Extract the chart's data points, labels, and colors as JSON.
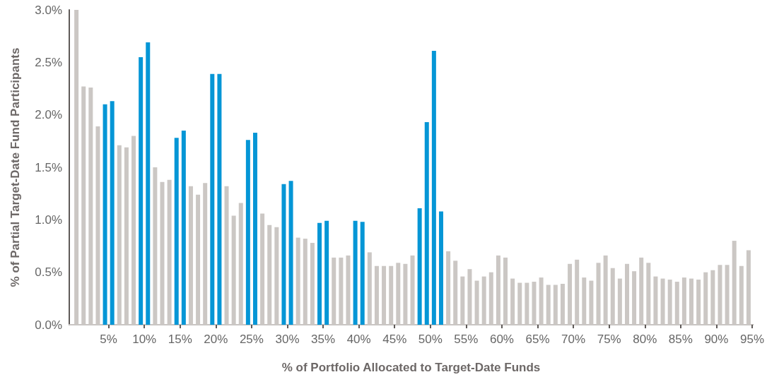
{
  "chart_data": {
    "type": "bar",
    "xlabel": "% of Portfolio Allocated to Target-Date Funds",
    "ylabel": "% of Partial Target-Date Fund Participants",
    "x": [
      1,
      2,
      3,
      4,
      5,
      6,
      7,
      8,
      9,
      10,
      11,
      12,
      13,
      14,
      15,
      16,
      17,
      18,
      19,
      20,
      21,
      22,
      23,
      24,
      25,
      26,
      27,
      28,
      29,
      30,
      31,
      32,
      33,
      34,
      35,
      36,
      37,
      38,
      39,
      40,
      41,
      42,
      43,
      44,
      45,
      46,
      47,
      48,
      49,
      50,
      51,
      52,
      53,
      54,
      55,
      56,
      57,
      58,
      59,
      60,
      61,
      62,
      63,
      64,
      65,
      66,
      67,
      68,
      69,
      70,
      71,
      72,
      73,
      74,
      75,
      76,
      77,
      78,
      79,
      80,
      81,
      82,
      83,
      84,
      85,
      86,
      87,
      88,
      89,
      90,
      91,
      92,
      93,
      94,
      95
    ],
    "values": [
      3.0,
      2.27,
      2.26,
      1.89,
      2.1,
      2.13,
      1.71,
      1.69,
      1.8,
      2.55,
      2.69,
      1.5,
      1.36,
      1.38,
      1.78,
      1.85,
      1.32,
      1.24,
      1.35,
      2.39,
      2.39,
      1.32,
      1.04,
      1.16,
      1.76,
      1.83,
      1.06,
      0.95,
      0.93,
      1.34,
      1.37,
      0.83,
      0.82,
      0.78,
      0.97,
      0.99,
      0.64,
      0.64,
      0.66,
      0.99,
      0.98,
      0.69,
      0.56,
      0.56,
      0.56,
      0.59,
      0.58,
      0.66,
      1.11,
      1.93,
      2.61,
      1.08,
      0.7,
      0.61,
      0.46,
      0.53,
      0.42,
      0.46,
      0.5,
      0.66,
      0.64,
      0.44,
      0.4,
      0.4,
      0.41,
      0.45,
      0.38,
      0.38,
      0.39,
      0.58,
      0.62,
      0.45,
      0.42,
      0.59,
      0.66,
      0.54,
      0.44,
      0.58,
      0.51,
      0.64,
      0.59,
      0.46,
      0.44,
      0.43,
      0.41,
      0.45,
      0.44,
      0.43,
      0.5,
      0.52,
      0.57,
      0.57,
      0.8,
      0.56,
      0.71
    ],
    "colors": [
      "#cbc7c4",
      "#cbc7c4",
      "#cbc7c4",
      "#cbc7c4",
      "#0596d6",
      "#0596d6",
      "#cbc7c4",
      "#cbc7c4",
      "#cbc7c4",
      "#0596d6",
      "#0596d6",
      "#cbc7c4",
      "#cbc7c4",
      "#cbc7c4",
      "#0596d6",
      "#0596d6",
      "#cbc7c4",
      "#cbc7c4",
      "#cbc7c4",
      "#0596d6",
      "#0596d6",
      "#cbc7c4",
      "#cbc7c4",
      "#cbc7c4",
      "#0596d6",
      "#0596d6",
      "#cbc7c4",
      "#cbc7c4",
      "#cbc7c4",
      "#0596d6",
      "#0596d6",
      "#cbc7c4",
      "#cbc7c4",
      "#cbc7c4",
      "#0596d6",
      "#0596d6",
      "#cbc7c4",
      "#cbc7c4",
      "#cbc7c4",
      "#0596d6",
      "#0596d6",
      "#cbc7c4",
      "#cbc7c4",
      "#cbc7c4",
      "#cbc7c4",
      "#cbc7c4",
      "#cbc7c4",
      "#cbc7c4",
      "#0596d6",
      "#0596d6",
      "#0596d6",
      "#0596d6",
      "#cbc7c4",
      "#cbc7c4",
      "#cbc7c4",
      "#cbc7c4",
      "#cbc7c4",
      "#cbc7c4",
      "#cbc7c4",
      "#cbc7c4",
      "#cbc7c4",
      "#cbc7c4",
      "#cbc7c4",
      "#cbc7c4",
      "#cbc7c4",
      "#cbc7c4",
      "#cbc7c4",
      "#cbc7c4",
      "#cbc7c4",
      "#cbc7c4",
      "#cbc7c4",
      "#cbc7c4",
      "#cbc7c4",
      "#cbc7c4",
      "#cbc7c4",
      "#cbc7c4",
      "#cbc7c4",
      "#cbc7c4",
      "#cbc7c4",
      "#cbc7c4",
      "#cbc7c4",
      "#cbc7c4",
      "#cbc7c4",
      "#cbc7c4",
      "#cbc7c4",
      "#cbc7c4",
      "#cbc7c4",
      "#cbc7c4",
      "#cbc7c4",
      "#cbc7c4",
      "#cbc7c4",
      "#cbc7c4",
      "#cbc7c4",
      "#cbc7c4",
      "#cbc7c4"
    ],
    "xlim": [
      0,
      95.6
    ],
    "xticks": [
      {
        "value": 5.5,
        "label": "5%"
      },
      {
        "value": 10.5,
        "label": "10%"
      },
      {
        "value": 15.5,
        "label": "15%"
      },
      {
        "value": 20.5,
        "label": "20%"
      },
      {
        "value": 25.5,
        "label": "25%"
      },
      {
        "value": 30.5,
        "label": "30%"
      },
      {
        "value": 35.5,
        "label": "35%"
      },
      {
        "value": 40.5,
        "label": "40%"
      },
      {
        "value": 45.5,
        "label": "45%"
      },
      {
        "value": 50.5,
        "label": "50%"
      },
      {
        "value": 55.5,
        "label": "55%"
      },
      {
        "value": 60.5,
        "label": "60%"
      },
      {
        "value": 65.5,
        "label": "65%"
      },
      {
        "value": 70.5,
        "label": "70%"
      },
      {
        "value": 75.5,
        "label": "75%"
      },
      {
        "value": 80.5,
        "label": "80%"
      },
      {
        "value": 85.5,
        "label": "85%"
      },
      {
        "value": 90.5,
        "label": "90%"
      },
      {
        "value": 95.5,
        "label": "95%"
      }
    ],
    "ylim": [
      0,
      3.0
    ],
    "yticks": [
      {
        "value": 0,
        "label": "0.0%"
      },
      {
        "value": 0.5,
        "label": "0.5%"
      },
      {
        "value": 1.0,
        "label": "1.0%"
      },
      {
        "value": 1.5,
        "label": "1.5%"
      },
      {
        "value": 2.0,
        "label": "2.0%"
      },
      {
        "value": 2.5,
        "label": "2.5%"
      },
      {
        "value": 3.0,
        "label": "3.0%"
      }
    ],
    "grid": false
  }
}
